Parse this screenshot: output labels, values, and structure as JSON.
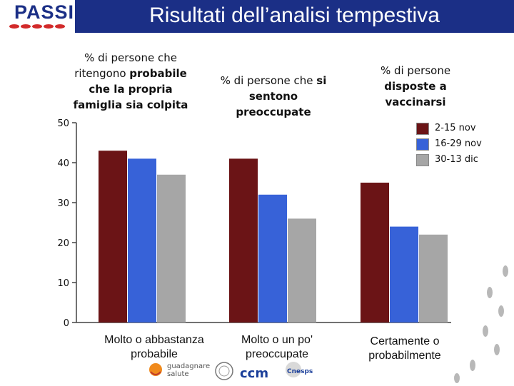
{
  "header": {
    "title": "Risultati dell’analisi tempestiva",
    "logo_text": "PASSI"
  },
  "captions": [
    {
      "pre": "% di persone che ritengono ",
      "bold": "probabile che la propria famiglia sia colpita",
      "post": ""
    },
    {
      "pre": "% di persone che ",
      "bold": "si sentono preoccupate",
      "post": ""
    },
    {
      "pre": "% di persone ",
      "bold": "disposte a vaccinarsi",
      "post": ""
    }
  ],
  "logos": {
    "guadagnare_line1": "guadagnare",
    "guadagnare_line2": "salute",
    "ccm": "ccm",
    "cnesps": "Cnesps"
  },
  "chart_data": {
    "type": "bar",
    "categories": [
      "Molto o abbastanza probabile",
      "Molto o un po' preoccupate",
      "Certamente o probabilmente"
    ],
    "series": [
      {
        "name": "2-15 nov",
        "color": "#6b1416",
        "values": [
          43,
          41,
          35
        ]
      },
      {
        "name": "16-29 nov",
        "color": "#3762d8",
        "values": [
          41,
          32,
          24
        ]
      },
      {
        "name": "30-13 dic",
        "color": "#a6a6a6",
        "values": [
          37,
          26,
          22
        ]
      }
    ],
    "ylim": [
      0,
      50
    ],
    "yticks": [
      0,
      10,
      20,
      30,
      40,
      50
    ],
    "grid": false,
    "legend": "top-right",
    "title": "",
    "xlabel": "",
    "ylabel": ""
  }
}
